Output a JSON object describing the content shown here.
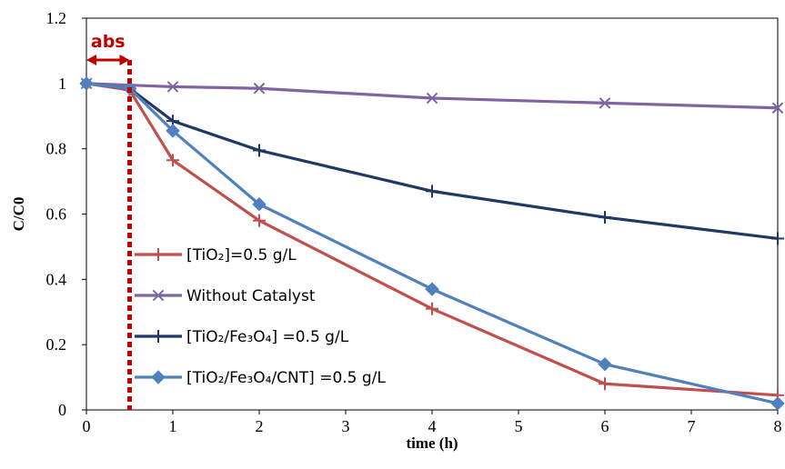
{
  "chart_data": {
    "type": "line",
    "xlabel": "time (h)",
    "ylabel": "C/C0",
    "xlim": [
      0,
      8
    ],
    "ylim": [
      0,
      1.2
    ],
    "x_ticks": [
      "0",
      "1",
      "2",
      "3",
      "4",
      "5",
      "6",
      "7",
      "8"
    ],
    "y_ticks": [
      "0",
      "0.2",
      "0.4",
      "0.6",
      "0.8",
      "1",
      "1.2"
    ],
    "grid": false,
    "legend_position": "bottom-left inside",
    "annotation": {
      "label": "abs",
      "x_range": [
        0,
        0.5
      ],
      "color": "#c00000"
    },
    "series": [
      {
        "name": "[TiO₂]=0.5 g/L",
        "color": "#c0504d",
        "marker": "plus",
        "x": [
          0,
          0.5,
          1,
          2,
          4,
          6,
          8
        ],
        "y": [
          1.0,
          0.98,
          0.765,
          0.58,
          0.31,
          0.08,
          0.045
        ]
      },
      {
        "name": "Without Catalyst",
        "color": "#8064a2",
        "marker": "x",
        "x": [
          0,
          1,
          2,
          4,
          6,
          8
        ],
        "y": [
          1.0,
          0.99,
          0.985,
          0.955,
          0.94,
          0.925
        ]
      },
      {
        "name": "[TiO₂/Fe₃O₄] =0.5 g/L",
        "color": "#1f3864",
        "marker": "plus",
        "x": [
          0,
          0.5,
          1,
          2,
          4,
          6,
          8
        ],
        "y": [
          1.0,
          0.985,
          0.885,
          0.795,
          0.67,
          0.59,
          0.525
        ]
      },
      {
        "name": "[TiO₂/Fe₃O₄/CNT] =0.5 g/L",
        "color": "#4f81bd",
        "marker": "diamond",
        "x": [
          0,
          0.5,
          1,
          2,
          4,
          6,
          8
        ],
        "y": [
          1.0,
          0.985,
          0.855,
          0.63,
          0.37,
          0.14,
          0.02
        ]
      }
    ]
  }
}
